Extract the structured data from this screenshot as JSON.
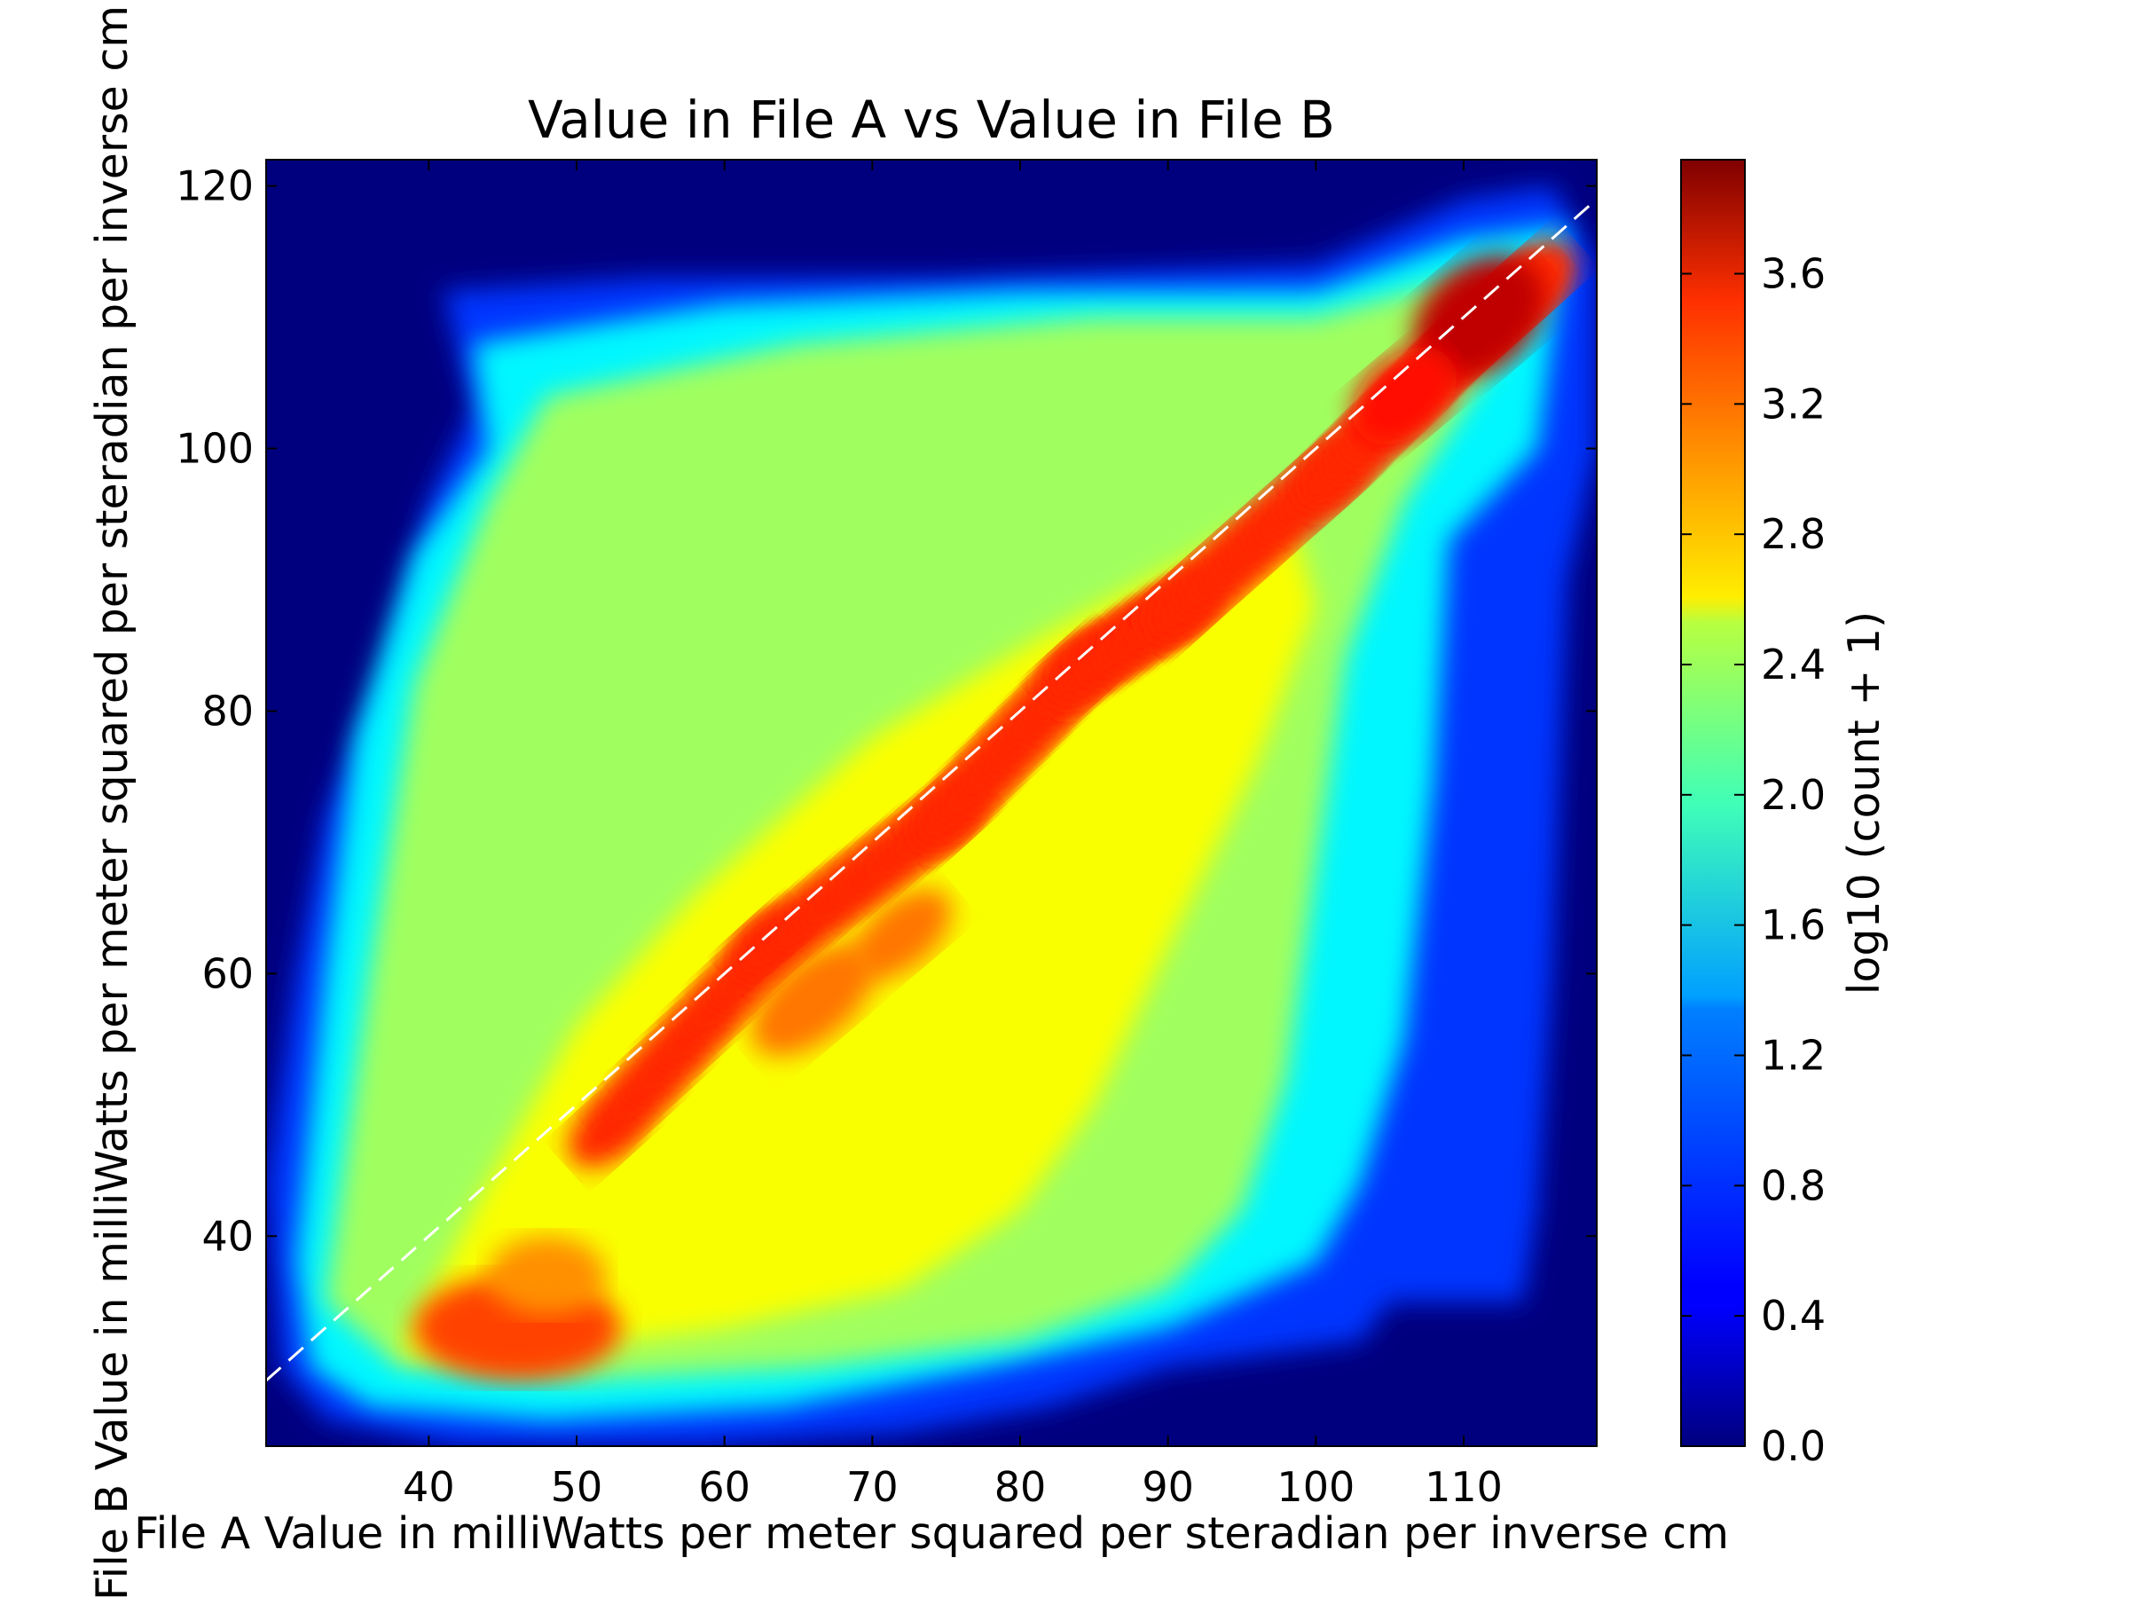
{
  "chart_data": {
    "type": "heatmap",
    "subtype": "hexbin",
    "title": "Value in File A vs Value in File B",
    "xlabel": "File A Value in milliWatts per meter squared per steradian per inverse cm",
    "ylabel": "File B Value in milliWatts per meter squared per steradian per inverse cm",
    "xlim": [
      29,
      119
    ],
    "ylim": [
      24,
      122
    ],
    "xticks": [
      40,
      50,
      60,
      70,
      80,
      90,
      100,
      110
    ],
    "yticks": [
      40,
      60,
      80,
      100,
      120
    ],
    "background_color": "#00007f",
    "grid": false,
    "colormap": "jet",
    "colorbar": {
      "label": "log10 (count + 1)",
      "range": [
        0.0,
        3.95
      ],
      "ticks": [
        "0.0",
        "0.4",
        "0.8",
        "1.2",
        "1.6",
        "2.0",
        "2.4",
        "2.8",
        "3.2",
        "3.6"
      ]
    },
    "reference_line": {
      "style": "dashed",
      "color": "#ffffff",
      "points": [
        [
          29,
          29
        ],
        [
          119,
          119
        ]
      ]
    },
    "regions": [
      {
        "name": "main band",
        "x_range": [
          31,
          118
        ],
        "y_range": [
          27,
          113
        ],
        "value": 2.1
      },
      {
        "name": "diagonal ridge",
        "points": [
          [
            52,
            48
          ],
          [
            63,
            62
          ],
          [
            75,
            72
          ],
          [
            84,
            83
          ],
          [
            91,
            88
          ],
          [
            101,
            98
          ],
          [
            110,
            108
          ],
          [
            115,
            113
          ]
        ],
        "value": 3.3
      },
      {
        "name": "low-left cluster",
        "center": [
          46,
          33
        ],
        "value": 3.2
      },
      {
        "name": "upper-right peak",
        "center": [
          111,
          110
        ],
        "value": 3.7
      }
    ]
  }
}
